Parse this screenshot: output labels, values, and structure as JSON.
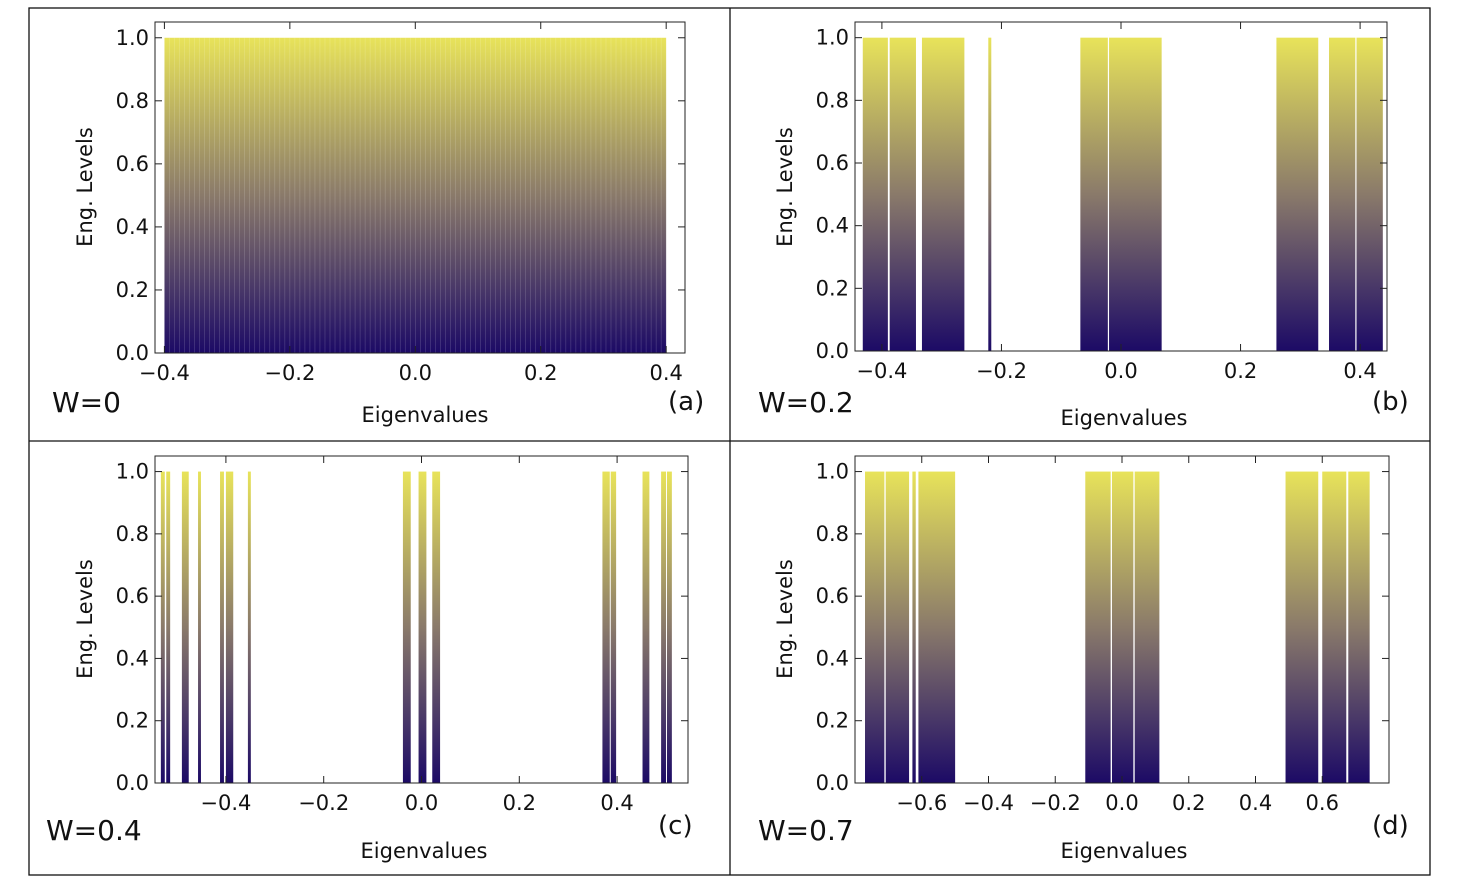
{
  "colors": {
    "gradient_top": "#e8e35a",
    "gradient_mid": "#8a7a6a",
    "gradient_bottom": "#1c0a66"
  },
  "chart_data": [
    {
      "type": "bar",
      "panel_tag": "(a)",
      "w_label": "W=0",
      "xlabel": "Eigenvalues",
      "ylabel": "Eng. Levels",
      "xlim": [
        -0.415,
        0.43
      ],
      "ylim": [
        0,
        1.05
      ],
      "xticks": [
        -0.4,
        -0.2,
        0.0,
        0.2,
        0.4
      ],
      "xtick_labels": [
        "−0.4",
        "−0.2",
        "0.0",
        "0.2",
        "0.4"
      ],
      "yticks": [
        0.0,
        0.2,
        0.4,
        0.6,
        0.8,
        1.0
      ],
      "ytick_labels": [
        "0.0",
        "0.2",
        "0.4",
        "0.6",
        "0.8",
        "1.0"
      ],
      "bands": [
        {
          "from": -0.4,
          "to": 0.4
        }
      ],
      "level_lines": {
        "from": -0.4,
        "to": 0.4,
        "count": 101
      },
      "level_height": 1.0
    },
    {
      "type": "bar",
      "panel_tag": "(b)",
      "w_label": "W=0.2",
      "xlabel": "Eigenvalues",
      "ylabel": "Eng. Levels",
      "xlim": [
        -0.445,
        0.445
      ],
      "ylim": [
        0,
        1.05
      ],
      "xticks": [
        -0.4,
        -0.2,
        0.0,
        0.2,
        0.4
      ],
      "xtick_labels": [
        "−0.4",
        "−0.2",
        "0.0",
        "0.2",
        "0.4"
      ],
      "yticks": [
        0.0,
        0.2,
        0.4,
        0.6,
        0.8,
        1.0
      ],
      "ytick_labels": [
        "0.0",
        "0.2",
        "0.4",
        "0.6",
        "0.8",
        "1.0"
      ],
      "bands": [
        {
          "from": -0.432,
          "to": -0.39
        },
        {
          "from": -0.387,
          "to": -0.343
        },
        {
          "from": -0.333,
          "to": -0.262
        },
        {
          "from": -0.222,
          "to": -0.217
        },
        {
          "from": -0.068,
          "to": -0.022
        },
        {
          "from": -0.02,
          "to": 0.068
        },
        {
          "from": 0.26,
          "to": 0.33
        },
        {
          "from": 0.348,
          "to": 0.392
        },
        {
          "from": 0.394,
          "to": 0.438
        }
      ],
      "level_height": 1.0
    },
    {
      "type": "bar",
      "panel_tag": "(c)",
      "w_label": "W=0.4",
      "xlabel": "Eigenvalues",
      "ylabel": "Eng. Levels",
      "xlim": [
        -0.545,
        0.545
      ],
      "ylim": [
        0,
        1.05
      ],
      "xticks": [
        -0.4,
        -0.2,
        0.0,
        0.2,
        0.4
      ],
      "xtick_labels": [
        "−0.4",
        "−0.2",
        "0.0",
        "0.2",
        "0.4"
      ],
      "yticks": [
        0.0,
        0.2,
        0.4,
        0.6,
        0.8,
        1.0
      ],
      "ytick_labels": [
        "0.0",
        "0.2",
        "0.4",
        "0.6",
        "0.8",
        "1.0"
      ],
      "bands": [
        {
          "from": -0.533,
          "to": -0.525
        },
        {
          "from": -0.522,
          "to": -0.514
        },
        {
          "from": -0.49,
          "to": -0.476
        },
        {
          "from": -0.457,
          "to": -0.451
        },
        {
          "from": -0.412,
          "to": -0.404
        },
        {
          "from": -0.4,
          "to": -0.385
        },
        {
          "from": -0.355,
          "to": -0.349
        },
        {
          "from": -0.038,
          "to": -0.022
        },
        {
          "from": -0.006,
          "to": 0.01
        },
        {
          "from": 0.022,
          "to": 0.038
        },
        {
          "from": 0.37,
          "to": 0.385
        },
        {
          "from": 0.387,
          "to": 0.398
        },
        {
          "from": 0.452,
          "to": 0.466
        },
        {
          "from": 0.49,
          "to": 0.5
        },
        {
          "from": 0.502,
          "to": 0.512
        }
      ],
      "level_height": 1.0
    },
    {
      "type": "bar",
      "panel_tag": "(d)",
      "w_label": "W=0.7",
      "xlabel": "Eigenvalues",
      "ylabel": "Eng. Levels",
      "xlim": [
        -0.8,
        0.8
      ],
      "ylim": [
        0,
        1.05
      ],
      "xticks": [
        -0.6,
        -0.4,
        -0.2,
        0.0,
        0.2,
        0.4,
        0.6
      ],
      "xtick_labels": [
        "−0.6",
        "−0.4",
        "−0.2",
        "0.0",
        "0.2",
        "0.4",
        "0.6"
      ],
      "yticks": [
        0.0,
        0.2,
        0.4,
        0.6,
        0.8,
        1.0
      ],
      "ytick_labels": [
        "0.0",
        "0.2",
        "0.4",
        "0.6",
        "0.8",
        "1.0"
      ],
      "bands": [
        {
          "from": -0.77,
          "to": -0.712
        },
        {
          "from": -0.708,
          "to": -0.638
        },
        {
          "from": -0.628,
          "to": -0.618
        },
        {
          "from": -0.61,
          "to": -0.5
        },
        {
          "from": -0.11,
          "to": -0.034
        },
        {
          "from": -0.03,
          "to": 0.034
        },
        {
          "from": 0.038,
          "to": 0.112
        },
        {
          "from": 0.49,
          "to": 0.588
        },
        {
          "from": 0.6,
          "to": 0.672
        },
        {
          "from": 0.678,
          "to": 0.742
        }
      ],
      "level_height": 1.0
    }
  ]
}
